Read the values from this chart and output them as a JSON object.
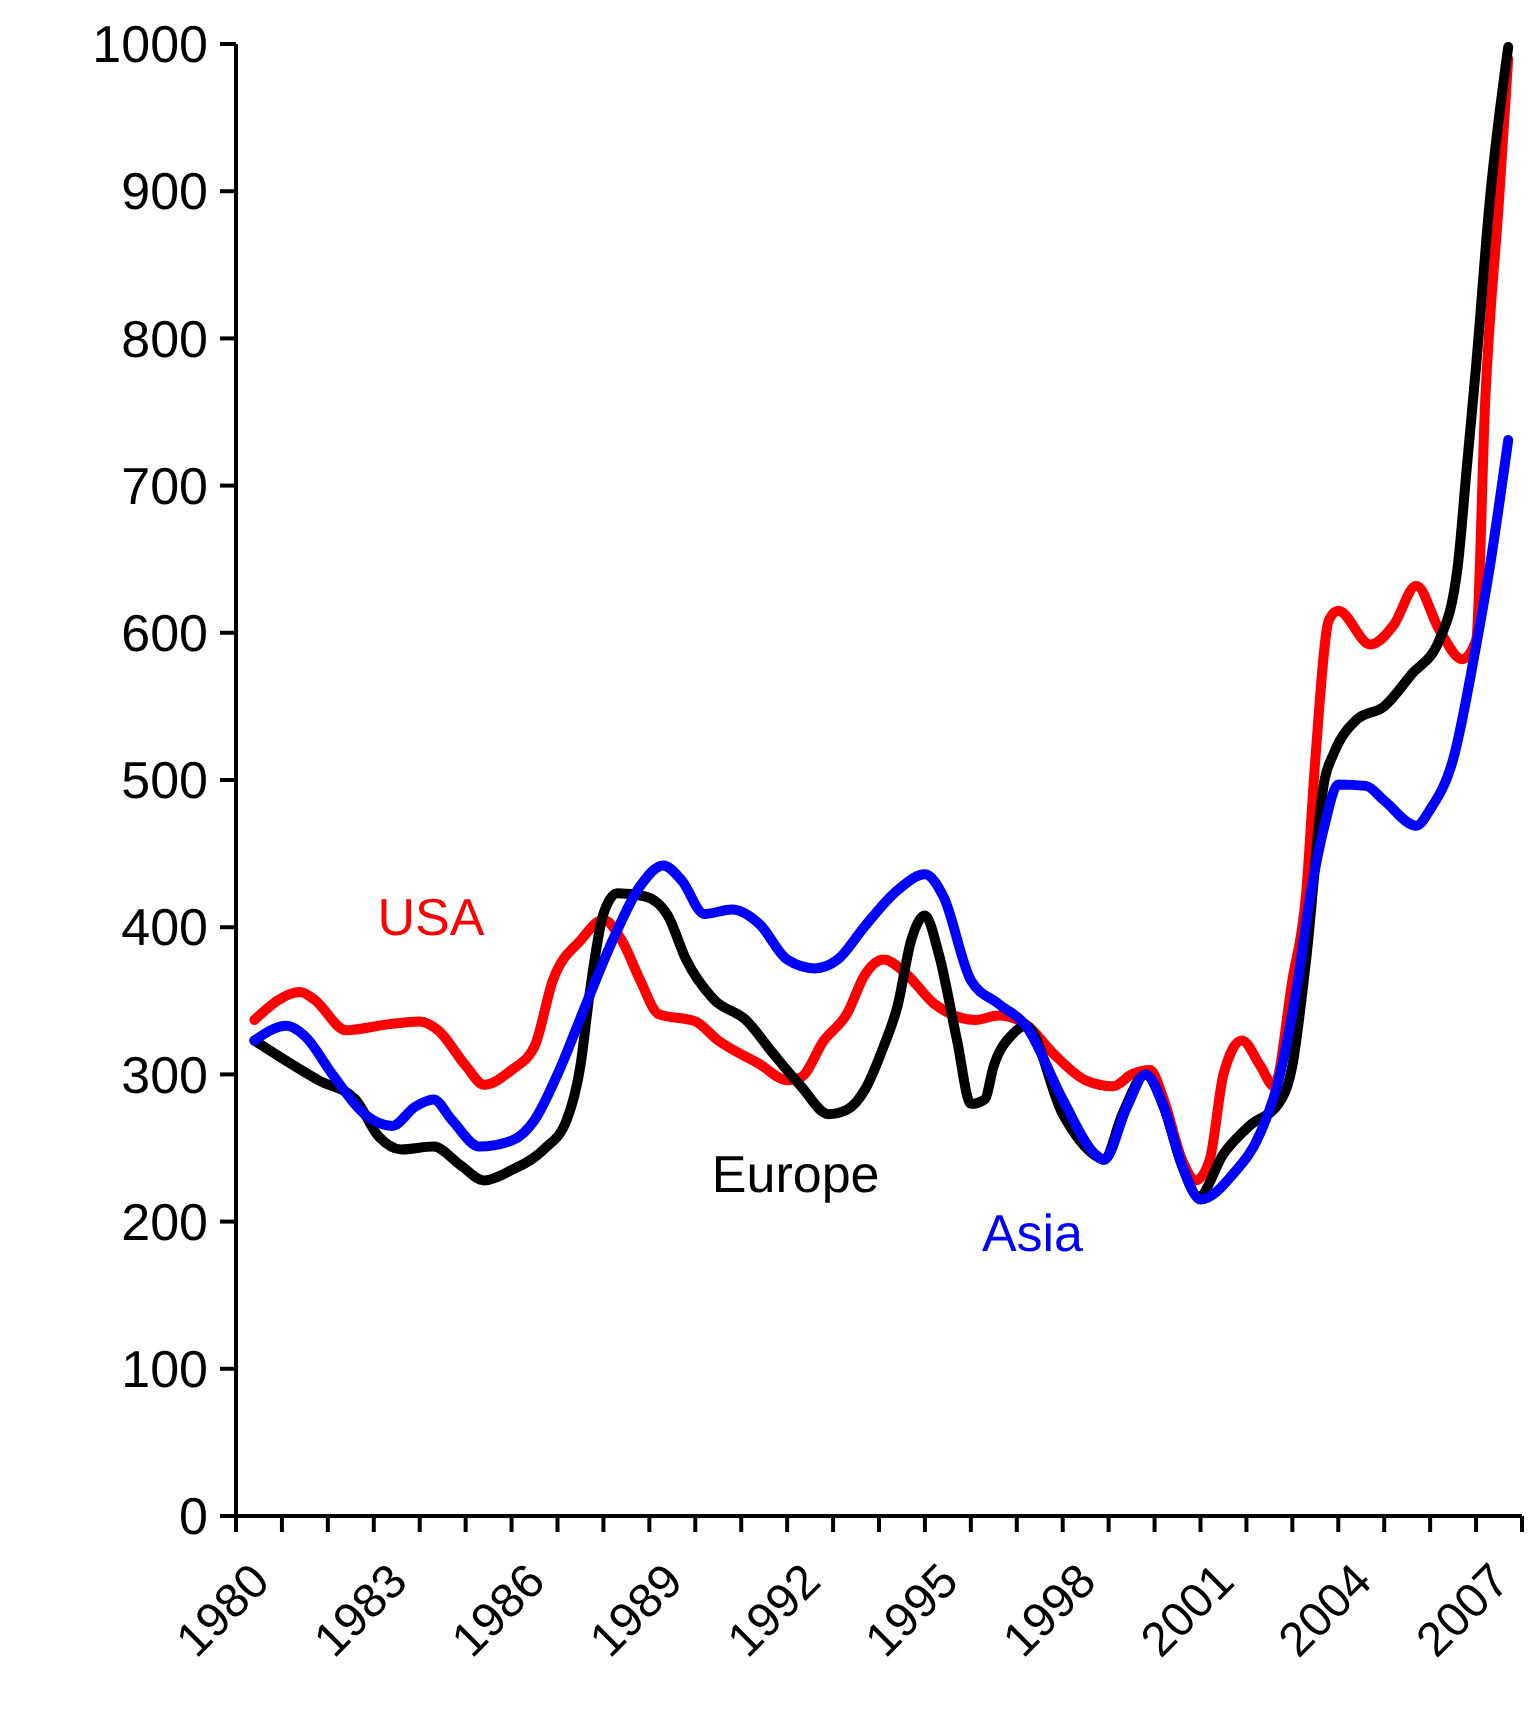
{
  "chart_data": {
    "type": "line",
    "xlim": [
      1980,
      2008
    ],
    "ylim": [
      0,
      1000
    ],
    "xticks": [
      1980,
      {
        "value": 1981,
        "label": null
      },
      {
        "value": 1982,
        "label": null
      },
      1983,
      {
        "value": 1984,
        "label": null
      },
      {
        "value": 1985,
        "label": null
      },
      1986,
      {
        "value": 1987,
        "label": null
      },
      {
        "value": 1988,
        "label": null
      },
      1989,
      {
        "value": 1990,
        "label": null
      },
      {
        "value": 1991,
        "label": null
      },
      1992,
      {
        "value": 1993,
        "label": null
      },
      {
        "value": 1994,
        "label": null
      },
      1995,
      {
        "value": 1996,
        "label": null
      },
      {
        "value": 1997,
        "label": null
      },
      1998,
      {
        "value": 1999,
        "label": null
      },
      {
        "value": 2000,
        "label": null
      },
      2001,
      {
        "value": 2002,
        "label": null
      },
      {
        "value": 2003,
        "label": null
      },
      2004,
      {
        "value": 2005,
        "label": null
      },
      {
        "value": 2006,
        "label": null
      },
      2007,
      {
        "value": 2008,
        "label": null
      }
    ],
    "yticks": [
      0,
      100,
      200,
      300,
      400,
      500,
      600,
      700,
      800,
      900,
      1000
    ],
    "grid": false,
    "legend": false,
    "marker": "none",
    "line_style": "solid",
    "series": [
      {
        "name": "USA",
        "color": "#ff0000",
        "x": [
          1980.4,
          1981.4,
          1981.7,
          1982.4,
          1983.3,
          1984.0,
          1984.4,
          1985.0,
          1985.4,
          1986.0,
          1986.5,
          1986.9,
          1987.5,
          1988.0,
          1988.4,
          1988.8,
          1989.2,
          1990.0,
          1990.5,
          1991.4,
          1992.0,
          1992.3,
          1992.8,
          1993.3,
          1993.7,
          1994.1,
          1994.6,
          1995.2,
          1996.1,
          1996.6,
          1997.2,
          1997.8,
          1998.5,
          1999.1,
          1999.5,
          1999.9,
          2000.2,
          2000.6,
          2000.9,
          2001.2,
          2001.5,
          2001.9,
          2002.3,
          2002.6,
          2003.0,
          2003.3,
          2003.5,
          2003.8,
          2004.0,
          2004.7,
          2005.2,
          2005.7,
          2006.2,
          2006.7,
          2007.0,
          2007.2,
          2007.5,
          2007.7
        ],
        "values": [
          337,
          356,
          351,
          330,
          334,
          336,
          330,
          306,
          293,
          303,
          319,
          364,
          391,
          405,
          391,
          364,
          341,
          336,
          323,
          307,
          296,
          298,
          323,
          341,
          368,
          378,
          368,
          348,
          337,
          340,
          334,
          314,
          296,
          292,
          300,
          303,
          283,
          242,
          228,
          242,
          300,
          323,
          306,
          292,
          364,
          423,
          514,
          609,
          615,
          592,
          605,
          632,
          602,
          582,
          595,
          758,
          894,
          990
        ]
      },
      {
        "name": "Europe",
        "color": "#000000",
        "x": [
          1980.4,
          1981.8,
          1982.6,
          1983.1,
          1983.6,
          1984.3,
          1984.9,
          1985.4,
          1986.0,
          1986.7,
          1987.2,
          1987.5,
          1987.7,
          1988.0,
          1988.3,
          1988.9,
          1989.4,
          1989.8,
          1990.4,
          1991.1,
          1991.7,
          1992.3,
          1992.9,
          1993.3,
          1993.7,
          1994.1,
          1994.4,
          1994.7,
          1995.0,
          1995.3,
          1995.7,
          1996.0,
          1996.3,
          1996.5,
          1996.9,
          1997.2,
          1998.0,
          1998.7,
          1998.9,
          1999.3,
          1999.8,
          2000.2,
          2000.6,
          2000.96,
          2001.5,
          2002.1,
          2002.7,
          2003.0,
          2003.3,
          2003.7,
          2003.9,
          2004.4,
          2005.0,
          2005.6,
          2006.2,
          2006.6,
          2006.8,
          2007.0,
          2007.3,
          2007.7
        ],
        "values": [
          323,
          296,
          283,
          258,
          249,
          251,
          238,
          228,
          235,
          249,
          269,
          306,
          355,
          409,
          423,
          421,
          408,
          378,
          351,
          337,
          314,
          292,
          273,
          276,
          290,
          319,
          346,
          391,
          408,
          382,
          323,
          280,
          283,
          306,
          327,
          333,
          273,
          245,
          242,
          273,
          300,
          278,
          238,
          217,
          246,
          266,
          280,
          306,
          378,
          500,
          518,
          541,
          550,
          572,
          595,
          645,
          713,
          781,
          894,
          998
        ]
      },
      {
        "name": "Asia",
        "color": "#0000ff",
        "x": [
          1980.4,
          1981.1,
          1981.5,
          1982.1,
          1982.8,
          1983.4,
          1983.9,
          1984.3,
          1984.7,
          1985.3,
          1986.0,
          1986.5,
          1987.0,
          1987.6,
          1988.2,
          1988.8,
          1989.3,
          1989.7,
          1990.2,
          1990.8,
          1991.4,
          1992.0,
          1992.6,
          1993.1,
          1993.7,
          1994.4,
          1995.0,
          1995.4,
          1996.0,
          1996.6,
          1997.2,
          1998.0,
          1998.7,
          1998.9,
          1999.4,
          1999.8,
          2000.2,
          2000.6,
          2001.0,
          2001.7,
          2002.3,
          2002.7,
          2003.1,
          2003.4,
          2003.7,
          2004.0,
          2004.6,
          2005.0,
          2005.7,
          2006.0,
          2006.5,
          2007.0,
          2007.3,
          2007.7
        ],
        "values": [
          323,
          333,
          326,
          300,
          273,
          265,
          278,
          283,
          269,
          251,
          255,
          269,
          300,
          346,
          391,
          428,
          442,
          432,
          409,
          412,
          402,
          378,
          372,
          378,
          401,
          425,
          436,
          421,
          364,
          348,
          333,
          283,
          246,
          242,
          278,
          300,
          278,
          238,
          215,
          232,
          260,
          296,
          360,
          423,
          469,
          497,
          496,
          486,
          469,
          480,
          514,
          591,
          645,
          731
        ]
      }
    ]
  }
}
